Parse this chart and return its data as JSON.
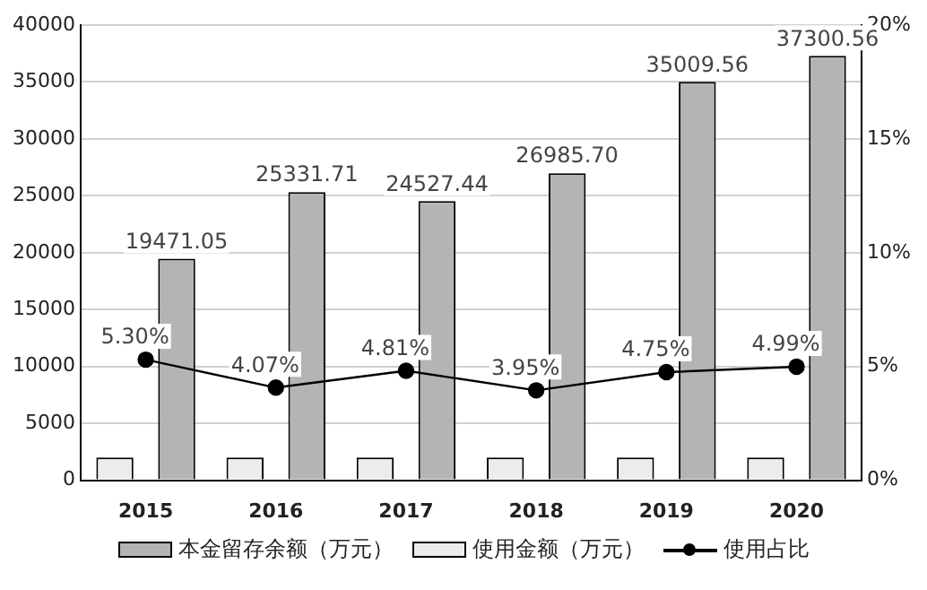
{
  "chart_data": {
    "type": "bar",
    "categories": [
      "2015",
      "2016",
      "2017",
      "2018",
      "2019",
      "2020"
    ],
    "series": [
      {
        "name": "使用金额（万元）",
        "color": "#ececec",
        "values": [
          2000,
          2000,
          2000,
          2000,
          2000,
          2000
        ]
      },
      {
        "name": "本金留存余额（万元）",
        "color": "#b4b4b4",
        "values": [
          19471.05,
          25331.71,
          24527.44,
          26985.7,
          35009.56,
          37300.56
        ],
        "value_labels": [
          "19471.05",
          "25331.71",
          "24527.44",
          "26985.70",
          "35009.56",
          "37300.56"
        ]
      },
      {
        "name": "使用占比",
        "type": "line",
        "axis": "y2",
        "color": "#000000",
        "values": [
          5.3,
          4.07,
          4.81,
          3.95,
          4.75,
          4.99
        ],
        "value_labels": [
          "5.30%",
          "4.07%",
          "4.81%",
          "3.95%",
          "4.75%",
          "4.99%"
        ]
      }
    ],
    "ylim": [
      0,
      40000
    ],
    "yticks": [
      0,
      5000,
      10000,
      15000,
      20000,
      25000,
      30000,
      35000,
      40000
    ],
    "y2lim": [
      0,
      20
    ],
    "y2ticks": [
      {
        "value": 0,
        "label": "0%"
      },
      {
        "value": 5,
        "label": "5%"
      },
      {
        "value": 10,
        "label": "10%"
      },
      {
        "value": 15,
        "label": "15%"
      },
      {
        "value": 20,
        "label": "20%"
      }
    ],
    "grid": "y",
    "legend": "bottom",
    "marker": "circle",
    "line_style": "solid"
  }
}
